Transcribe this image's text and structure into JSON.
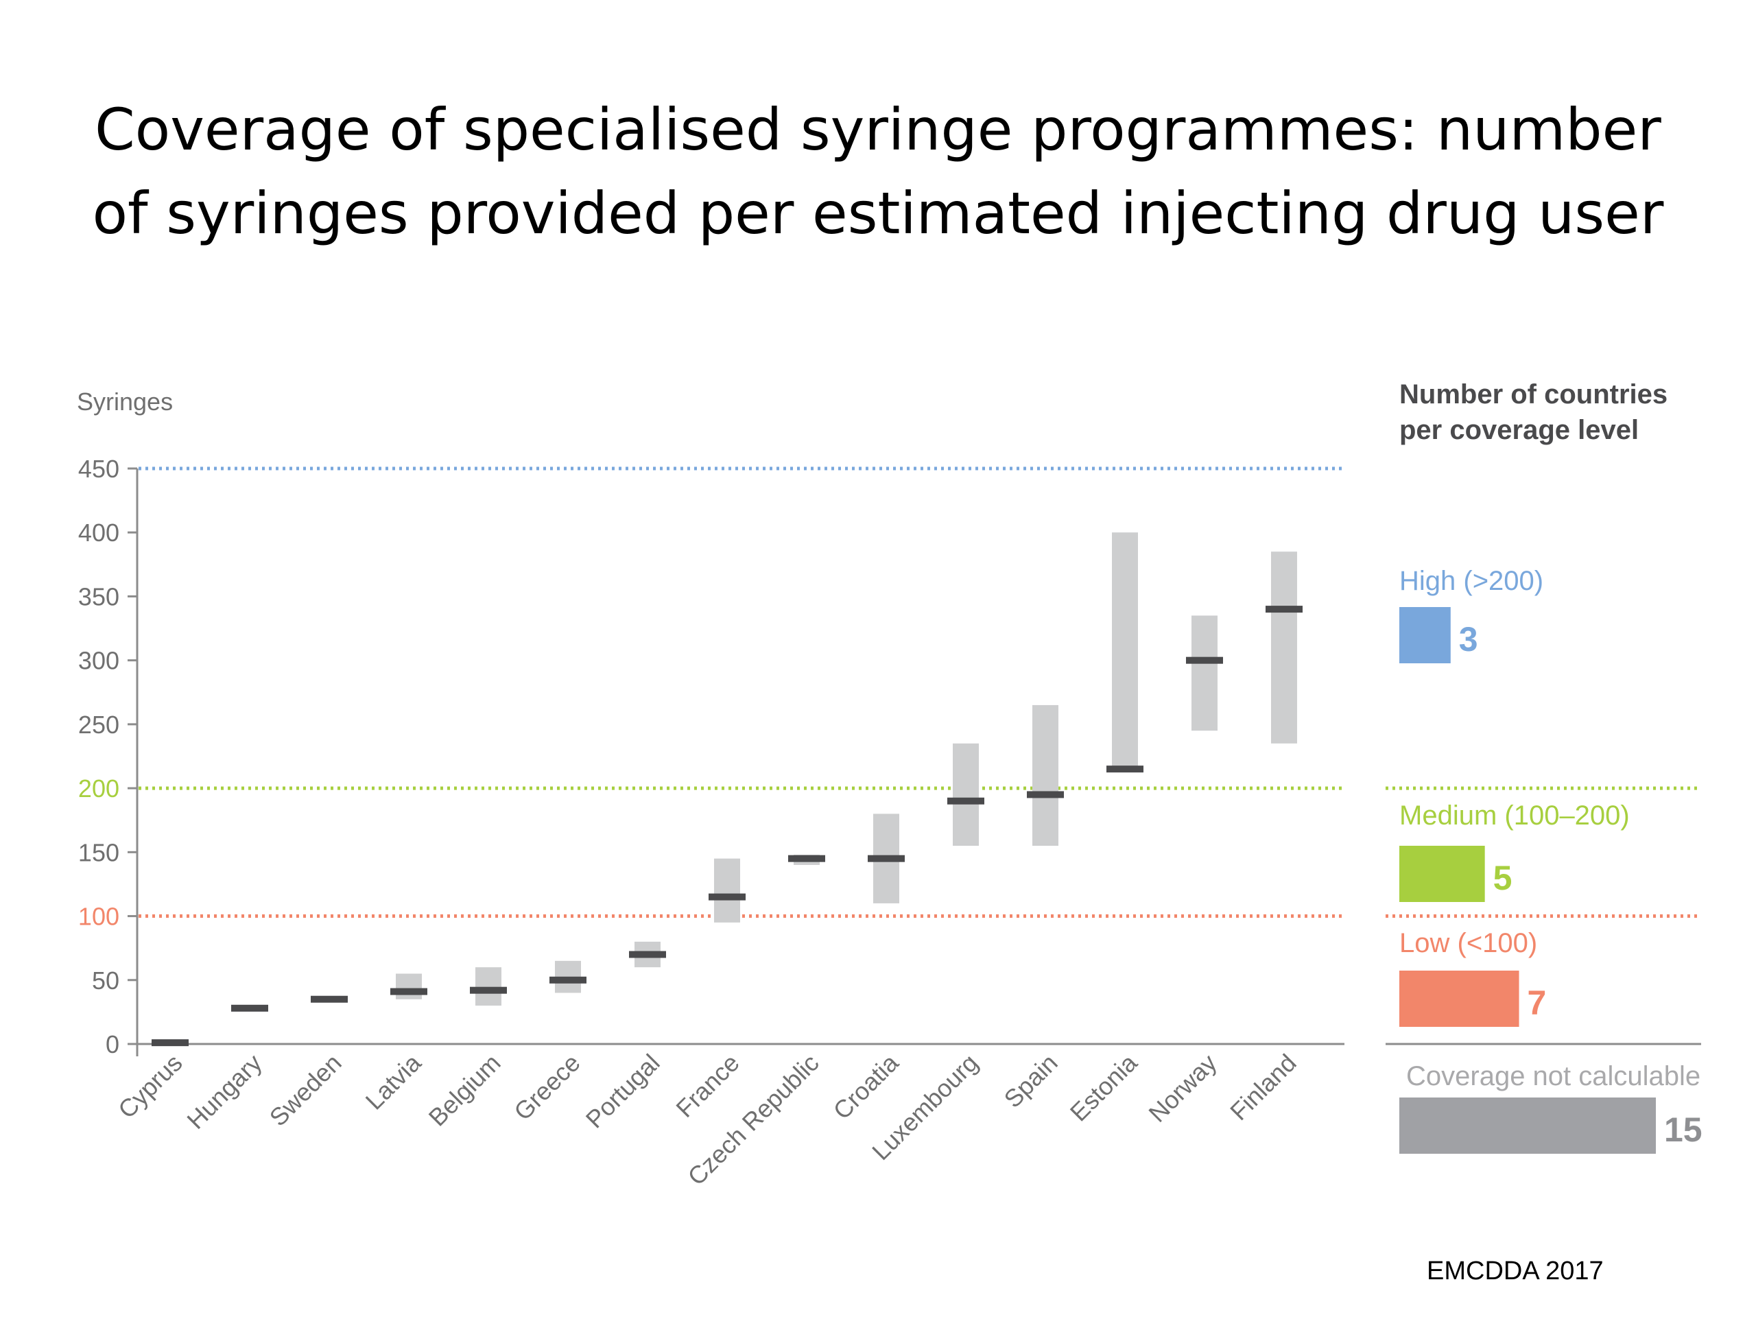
{
  "title": {
    "line1": "Coverage of specialised syringe programmes: number",
    "line2": "of syringes provided per estimated injecting drug user"
  },
  "source": "EMCDDA 2017",
  "colors": {
    "high": "#79a7dc",
    "medium": "#a7cf3f",
    "low": "#f2866a",
    "not_calculable": "#a0a1a5",
    "range": "#cdcecf",
    "point": "#4a4a4c",
    "axis": "#8c8c8c",
    "tick_text": "#6f6f6f"
  },
  "chart_data": {
    "type": "range",
    "ylabel": "Syringes",
    "ylim": [
      0,
      450
    ],
    "yticks": [
      0,
      50,
      100,
      150,
      200,
      250,
      300,
      350,
      400,
      450
    ],
    "categories": [
      "Cyprus",
      "Hungary",
      "Sweden",
      "Latvia",
      "Belgium",
      "Greece",
      "Portugal",
      "France",
      "Czech Republic",
      "Croatia",
      "Luxembourg",
      "Spain",
      "Estonia",
      "Norway",
      "Finland"
    ],
    "values": [
      1,
      28,
      35,
      41,
      42,
      50,
      70,
      115,
      145,
      145,
      190,
      195,
      215,
      300,
      340
    ],
    "ranges": [
      [
        0,
        1
      ],
      [
        28,
        28
      ],
      [
        35,
        35
      ],
      [
        35,
        55
      ],
      [
        30,
        60
      ],
      [
        40,
        65
      ],
      [
        60,
        80
      ],
      [
        95,
        145
      ],
      [
        140,
        148
      ],
      [
        110,
        180
      ],
      [
        155,
        235
      ],
      [
        155,
        265
      ],
      [
        215,
        400
      ],
      [
        245,
        335
      ],
      [
        235,
        385
      ]
    ],
    "reference_lines": [
      {
        "value": 450,
        "color": "#79a7dc",
        "label": "450"
      },
      {
        "value": 200,
        "color": "#a7cf3f",
        "label": "200"
      },
      {
        "value": 100,
        "color": "#f2866a",
        "label": "100"
      }
    ],
    "legend": {
      "title_line1": "Number of countries",
      "title_line2": "per coverage level",
      "items": [
        {
          "label": "High (>200)",
          "count": 3,
          "color": "#79a7dc"
        },
        {
          "label": "Medium (100–200)",
          "count": 5,
          "color": "#a7cf3f"
        },
        {
          "label": "Low (<100)",
          "count": 7,
          "color": "#f2866a"
        },
        {
          "label": "Coverage not calculable",
          "count": 15,
          "color": "#a0a1a5"
        }
      ]
    }
  }
}
